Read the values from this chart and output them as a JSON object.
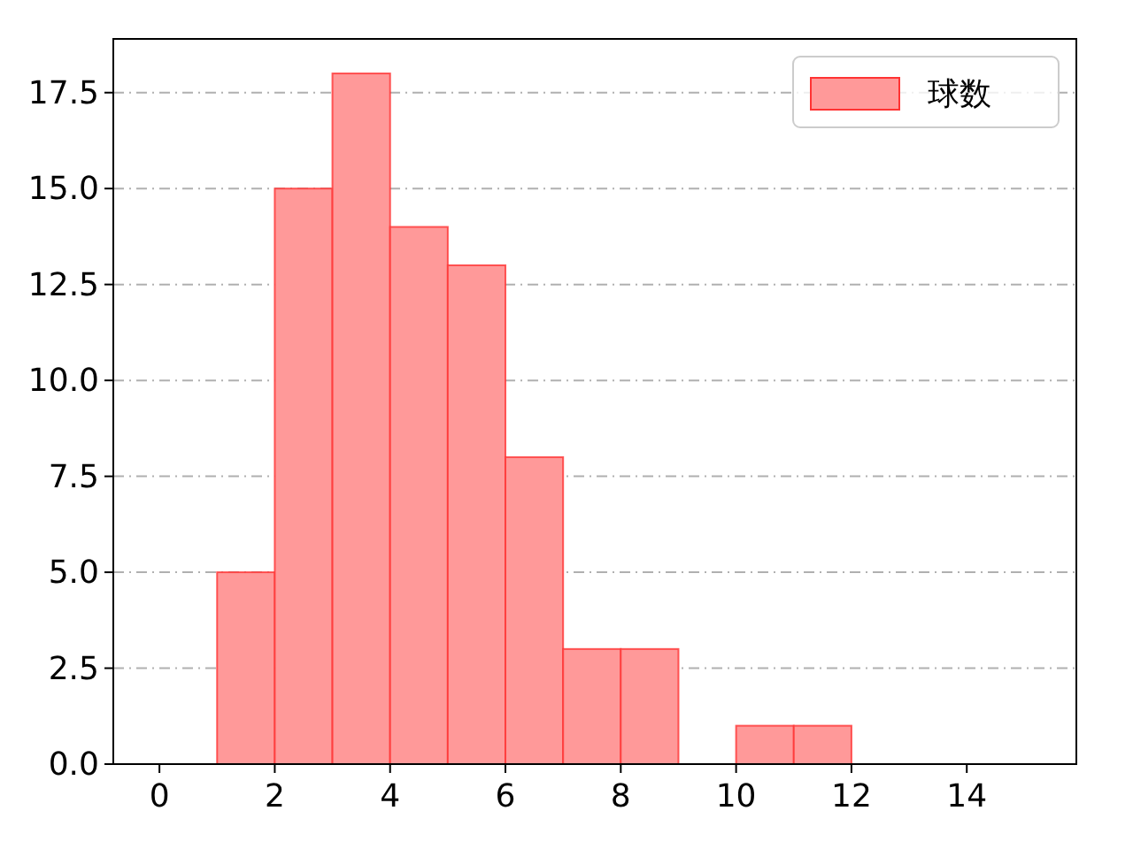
{
  "chart_data": {
    "type": "histogram",
    "bins": [
      1,
      2,
      3,
      4,
      5,
      6,
      7,
      8,
      9,
      10,
      11,
      12
    ],
    "series": [
      {
        "name": "球数",
        "color": "#ff9999",
        "values": [
          5,
          15,
          18,
          14,
          13,
          8,
          3,
          3,
          0,
          1,
          1
        ]
      }
    ],
    "xlim": [
      -0.8,
      15.9
    ],
    "xticks": [
      0,
      2,
      4,
      6,
      8,
      10,
      12,
      14
    ],
    "ylim": [
      0,
      18.9
    ],
    "yticks": [
      {
        "value": 0,
        "label": "0.0"
      },
      {
        "value": 2.5,
        "label": "2.5"
      },
      {
        "value": 5,
        "label": "5.0"
      },
      {
        "value": 7.5,
        "label": "7.5"
      },
      {
        "value": 10,
        "label": "10.0"
      },
      {
        "value": 12.5,
        "label": "12.5"
      },
      {
        "value": 15,
        "label": "15.0"
      },
      {
        "value": 17.5,
        "label": "17.5"
      }
    ],
    "grid": "y",
    "legend": "top right"
  }
}
